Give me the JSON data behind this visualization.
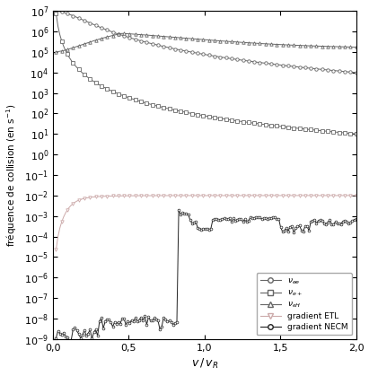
{
  "xlabel": "$v\\,/\\,v_R$",
  "ylabel": "fréquence de collision (en s$^{-1}$)",
  "xlim": [
    0.0,
    2.0
  ],
  "ylim": [
    1e-09,
    10000000.0
  ],
  "x_ticks": [
    0.0,
    0.5,
    1.0,
    1.5,
    2.0
  ],
  "x_tick_labels": [
    "0,0",
    "0,5",
    "1,0",
    "1,5",
    "2,0"
  ],
  "legend_labels": [
    "$\\nu_{ee}$",
    "$\\nu_{e+}$",
    "$\\nu_{eH}$",
    "gradient ETL",
    "gradient NECM"
  ],
  "gray": "#666666",
  "pink": "#ccaaaa",
  "dark": "#222222"
}
